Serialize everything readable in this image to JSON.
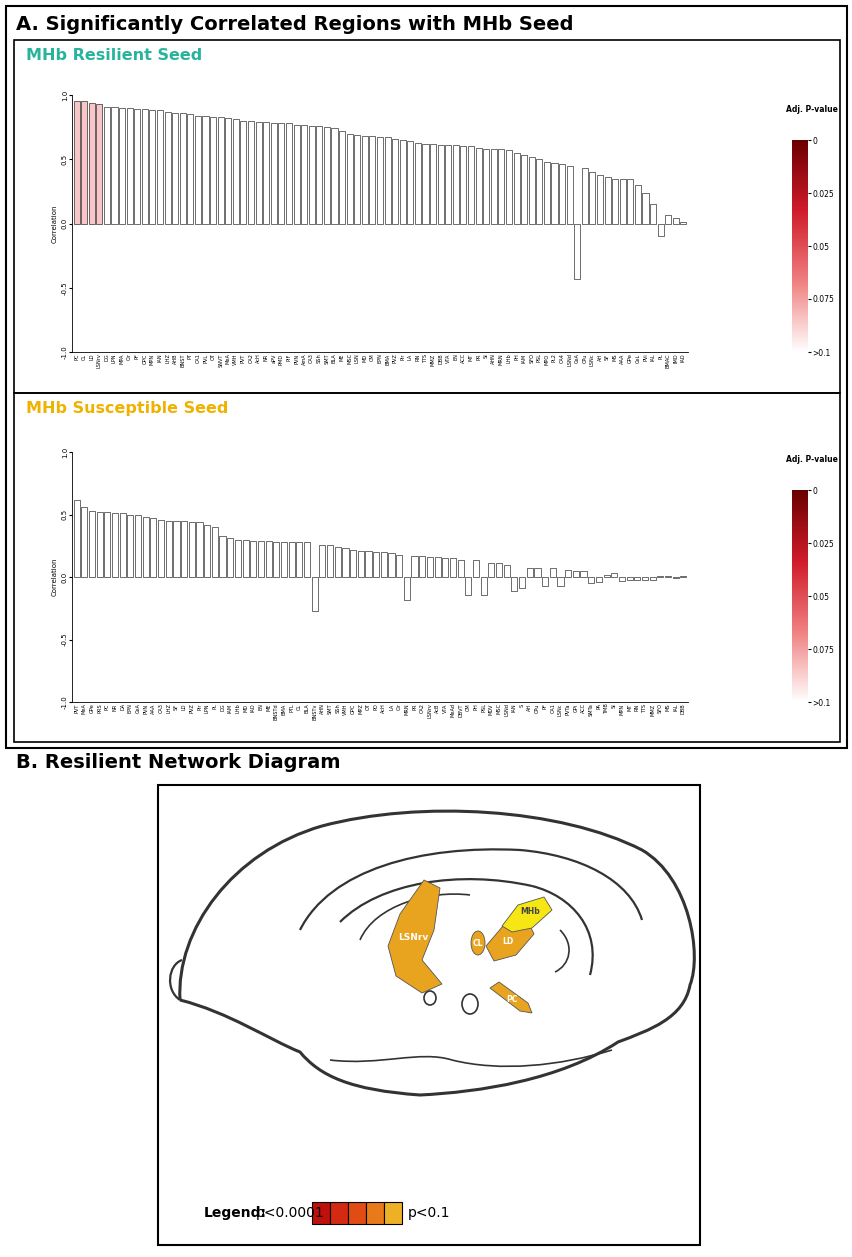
{
  "panel_a": {
    "title": "A. Significantly Correlated Regions with MHb Seed"
  },
  "chart_data": [
    {
      "type": "bar",
      "title": "MHb Resilient Seed",
      "ylabel": "Correlation",
      "categories": [
        "PC",
        "CL",
        "LD",
        "LSNrv",
        "DG",
        "LPN",
        "MPA",
        "Cir",
        "PF",
        "OPC",
        "MPN",
        "IAN",
        "LHZ",
        "AHB",
        "BNST",
        "PT",
        "CA1",
        "PVL",
        "OT",
        "SNVT",
        "MeA",
        "VMH",
        "PVT",
        "CA2",
        "AcH",
        "NR",
        "aPV",
        "PMD",
        "PIF",
        "PVN",
        "AmA",
        "CA3",
        "SSh",
        "SMT",
        "BLA",
        "ME",
        "MSC",
        "LSN",
        "MD",
        "CM",
        "EPN",
        "BMA",
        "PVZ",
        "Pir",
        "LA",
        "RN",
        "TTS",
        "MMZ",
        "DBB",
        "VTA",
        "EN",
        "ACC",
        "MT",
        "PR",
        "SI",
        "AHN",
        "MRN",
        "LHb",
        "PH",
        "IAM",
        "SFO",
        "PSL",
        "MPO",
        "PL2",
        "CA4",
        "LSNd",
        "CeA",
        "CPu",
        "LSNc",
        "AH",
        "SF",
        "MS",
        "AAA",
        "GPe",
        "CeL",
        "PVi",
        "IAL",
        "PL",
        "BMAC",
        "IMD",
        "IAD"
      ],
      "values": [
        0.95,
        0.95,
        0.94,
        0.93,
        0.91,
        0.91,
        0.9,
        0.9,
        0.89,
        0.89,
        0.88,
        0.88,
        0.87,
        0.86,
        0.86,
        0.85,
        0.84,
        0.84,
        0.83,
        0.83,
        0.82,
        0.81,
        0.8,
        0.8,
        0.79,
        0.79,
        0.78,
        0.78,
        0.78,
        0.77,
        0.77,
        0.76,
        0.76,
        0.75,
        0.74,
        0.72,
        0.7,
        0.69,
        0.68,
        0.68,
        0.67,
        0.67,
        0.66,
        0.65,
        0.64,
        0.63,
        0.62,
        0.62,
        0.61,
        0.61,
        0.61,
        0.6,
        0.6,
        0.59,
        0.58,
        0.58,
        0.58,
        0.57,
        0.55,
        0.53,
        0.52,
        0.5,
        0.48,
        0.47,
        0.46,
        0.45,
        -0.43,
        0.43,
        0.4,
        0.38,
        0.36,
        0.35,
        0.35,
        0.35,
        0.3,
        0.24,
        0.15,
        -0.1,
        0.07,
        0.04,
        0.01
      ],
      "adj_p_values": [
        0.085,
        0.085,
        0.085,
        0.085,
        1,
        1,
        1,
        1,
        1,
        1,
        1,
        1,
        1,
        1,
        1,
        1,
        1,
        1,
        1,
        1,
        1,
        1,
        1,
        1,
        1,
        1,
        1,
        1,
        1,
        1,
        1,
        1,
        1,
        1,
        1,
        1,
        1,
        1,
        1,
        1,
        1,
        1,
        1,
        1,
        1,
        1,
        1,
        1,
        1,
        1,
        1,
        1,
        1,
        1,
        1,
        1,
        1,
        1,
        1,
        1,
        1,
        1,
        1,
        1,
        1,
        1,
        1,
        1,
        1,
        1,
        1,
        1,
        1,
        1,
        1,
        1,
        1,
        1,
        1,
        1,
        1
      ],
      "ylim": [
        -1,
        1
      ],
      "yticks": [
        {
          "value": -1,
          "label": "-1.0"
        },
        {
          "value": -0.5,
          "label": "-0.5"
        },
        {
          "value": 0,
          "label": "0.0"
        },
        {
          "value": 0.5,
          "label": "0.5"
        },
        {
          "value": 1,
          "label": "1.0"
        }
      ],
      "colorbar": {
        "label": "Adj. P-value",
        "range": [
          0,
          0.1
        ],
        "ticks": [
          0,
          0.025,
          0.05,
          0.075,
          {
            "value": 0.1,
            "label": ">0.1"
          }
        ]
      }
    },
    {
      "type": "bar",
      "title": "MHb Susceptible Seed",
      "ylabel": "Correlation",
      "categories": [
        "PVT",
        "MeA",
        "GPe",
        "PRS",
        "PC",
        "NR",
        "DA",
        "EPN",
        "CeA",
        "PVN",
        "AAA",
        "CA3",
        "LHZ",
        "SF",
        "LD",
        "PVZ",
        "Pir",
        "LPN",
        "PL",
        "DG",
        "IAM",
        "LHb",
        "MD",
        "IAD",
        "EN",
        "ME",
        "BNSTd",
        "BMA",
        "PTL",
        "CL",
        "BLA",
        "BNSTv",
        "AHN",
        "SMT",
        "SSh",
        "VMH",
        "OPC",
        "MPZ",
        "OT",
        "PD",
        "AcH",
        "LA",
        "Cir",
        "MRN",
        "PR",
        "CA2",
        "LSNrv",
        "AcB",
        "VTA",
        "MeAd",
        "DBVT",
        "CM",
        "PH",
        "PSL",
        "MDV",
        "MSC",
        "LSNd",
        "IAN",
        "S",
        "AH",
        "CPu",
        "PF",
        "CA1",
        "LSNc",
        "PVTa",
        "GPi",
        "ACC",
        "SMTa",
        "PA",
        "TMB",
        "SI",
        "MPN",
        "MT",
        "RN",
        "TTS",
        "MMZ",
        "SFO",
        "MS",
        "IAL",
        "DBB"
      ],
      "values": [
        0.62,
        0.56,
        0.53,
        0.52,
        0.52,
        0.51,
        0.51,
        0.5,
        0.5,
        0.48,
        0.47,
        0.46,
        0.45,
        0.45,
        0.45,
        0.44,
        0.44,
        0.42,
        0.4,
        0.33,
        0.31,
        0.3,
        0.3,
        0.29,
        0.29,
        0.29,
        0.28,
        0.28,
        0.28,
        0.28,
        0.28,
        -0.27,
        0.26,
        0.26,
        0.24,
        0.23,
        0.22,
        0.21,
        0.21,
        0.2,
        0.2,
        0.19,
        0.18,
        -0.18,
        0.17,
        0.17,
        0.16,
        0.16,
        0.15,
        0.15,
        0.14,
        -0.14,
        0.14,
        -0.14,
        0.11,
        0.11,
        0.1,
        -0.11,
        -0.09,
        0.07,
        0.07,
        -0.07,
        0.07,
        -0.07,
        0.06,
        0.05,
        0.05,
        -0.05,
        -0.04,
        0.02,
        0.03,
        -0.03,
        -0.02,
        -0.02,
        -0.02,
        -0.02,
        0.01,
        0.01,
        -0.01,
        0.01
      ],
      "adj_p_values": [
        1,
        1,
        1,
        1,
        1,
        1,
        1,
        1,
        1,
        1,
        1,
        1,
        1,
        1,
        1,
        1,
        1,
        1,
        1,
        1,
        1,
        1,
        1,
        1,
        1,
        1,
        1,
        1,
        1,
        1,
        1,
        1,
        1,
        1,
        1,
        1,
        1,
        1,
        1,
        1,
        1,
        1,
        1,
        1,
        1,
        1,
        1,
        1,
        1,
        1,
        1,
        1,
        1,
        1,
        1,
        1,
        1,
        1,
        1,
        1,
        1,
        1,
        1,
        1,
        1,
        1,
        1,
        1,
        1,
        1,
        1,
        1,
        1,
        1,
        1,
        1,
        1,
        1,
        1,
        1
      ],
      "ylim": [
        -1,
        1
      ],
      "yticks": [
        {
          "value": -1,
          "label": "-1.0"
        },
        {
          "value": -0.5,
          "label": "-0.5"
        },
        {
          "value": 0,
          "label": "0.0"
        },
        {
          "value": 0.5,
          "label": "0.5"
        },
        {
          "value": 1,
          "label": "1.0"
        }
      ],
      "colorbar": {
        "label": "Adj. P-value",
        "range": [
          0,
          0.1
        ],
        "ticks": [
          0,
          0.025,
          0.05,
          0.075,
          {
            "value": 0.1,
            "label": ">0.1"
          }
        ]
      }
    }
  ],
  "panel_b": {
    "title": "B. Resilient Network Diagram",
    "regions": [
      {
        "label": "LSNrv",
        "color": "#e8a41f"
      },
      {
        "label": "CL",
        "color": "#e8a41f"
      },
      {
        "label": "LD",
        "color": "#e8a41f"
      },
      {
        "label": "MHb",
        "color": "#f5e614"
      },
      {
        "label": "PC",
        "color": "#e8a41f"
      }
    ],
    "scale_key": {
      "title": "Legend:",
      "low": "p<0.0001",
      "high": "p<0.1",
      "colors": [
        "#c0100c",
        "#d42a12",
        "#e04c14",
        "#e87a1a",
        "#eeb024"
      ]
    }
  }
}
